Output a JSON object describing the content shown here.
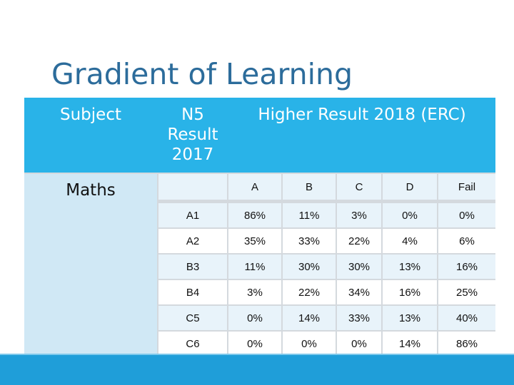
{
  "title": "Gradient of Learning",
  "header": {
    "subject": "Subject",
    "n5_result": "N5 Result 2017",
    "higher_result": "Higher Result 2018 (ERC)"
  },
  "subject_name": "Maths",
  "grade_headers": [
    "A",
    "B",
    "C",
    "D",
    "Fail"
  ],
  "rows": [
    {
      "n5": "A1",
      "values": [
        "86%",
        "11%",
        "3%",
        "0%",
        "0%"
      ]
    },
    {
      "n5": "A2",
      "values": [
        "35%",
        "33%",
        "22%",
        "4%",
        "6%"
      ]
    },
    {
      "n5": "B3",
      "values": [
        "11%",
        "30%",
        "30%",
        "13%",
        "16%"
      ]
    },
    {
      "n5": "B4",
      "values": [
        "3%",
        "22%",
        "34%",
        "16%",
        "25%"
      ]
    },
    {
      "n5": "C5",
      "values": [
        "0%",
        "14%",
        "33%",
        "13%",
        "40%"
      ]
    },
    {
      "n5": "C6",
      "values": [
        "0%",
        "0%",
        "0%",
        "14%",
        "86%"
      ]
    }
  ],
  "colors": {
    "title": "#2c6c9b",
    "header_band": "#29b3e8",
    "subject_cell": "#d0e8f5",
    "row_light": "#ffffff",
    "row_tinted": "#e8f3fa",
    "bottom_bar": "#1f9ed9"
  }
}
